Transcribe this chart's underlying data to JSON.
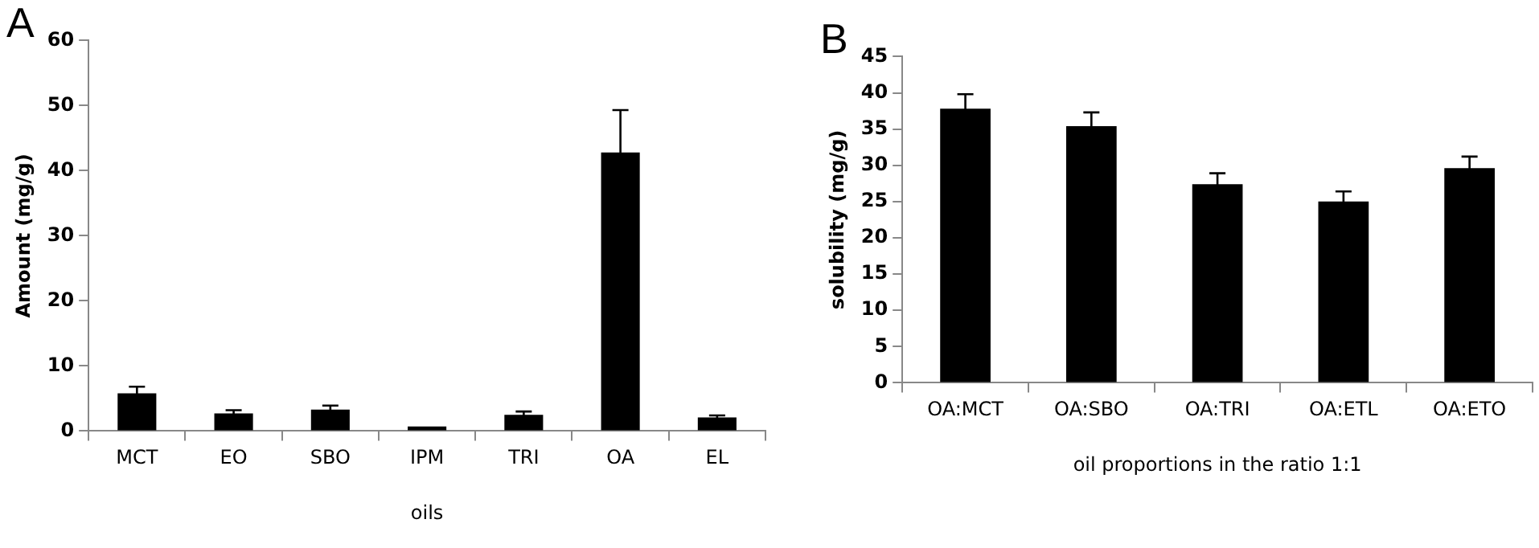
{
  "chart_data": [
    {
      "type": "bar",
      "title": "A",
      "xlabel": "oils",
      "ylabel": "Amount (mg/g)",
      "categories": [
        "MCT",
        "EO",
        "SBO",
        "IPM",
        "TRI",
        "OA",
        "EL"
      ],
      "values": [
        5.8,
        2.7,
        3.3,
        0.7,
        2.5,
        42.8,
        2.1
      ],
      "errors": [
        1.0,
        0.5,
        0.6,
        null,
        0.5,
        6.5,
        0.3
      ],
      "color": "#000000",
      "ylim": [
        0,
        60
      ],
      "yticks": [
        0,
        10,
        20,
        30,
        40,
        50,
        60
      ],
      "grid": false,
      "legend": false
    },
    {
      "type": "bar",
      "title": "B",
      "xlabel": "oil proportions in the ratio 1:1",
      "ylabel": "solubility (mg/g)",
      "categories": [
        "OA:MCT",
        "OA:SBO",
        "OA:TRI",
        "OA:ETL",
        "OA:ETO"
      ],
      "values": [
        37.8,
        35.4,
        27.4,
        25.0,
        29.6
      ],
      "errors": [
        2.0,
        1.9,
        1.5,
        1.4,
        1.6
      ],
      "color": "#000000",
      "ylim": [
        0,
        45
      ],
      "yticks": [
        0,
        5,
        10,
        15,
        20,
        25,
        30,
        35,
        40,
        45
      ],
      "grid": false,
      "legend": false
    }
  ]
}
